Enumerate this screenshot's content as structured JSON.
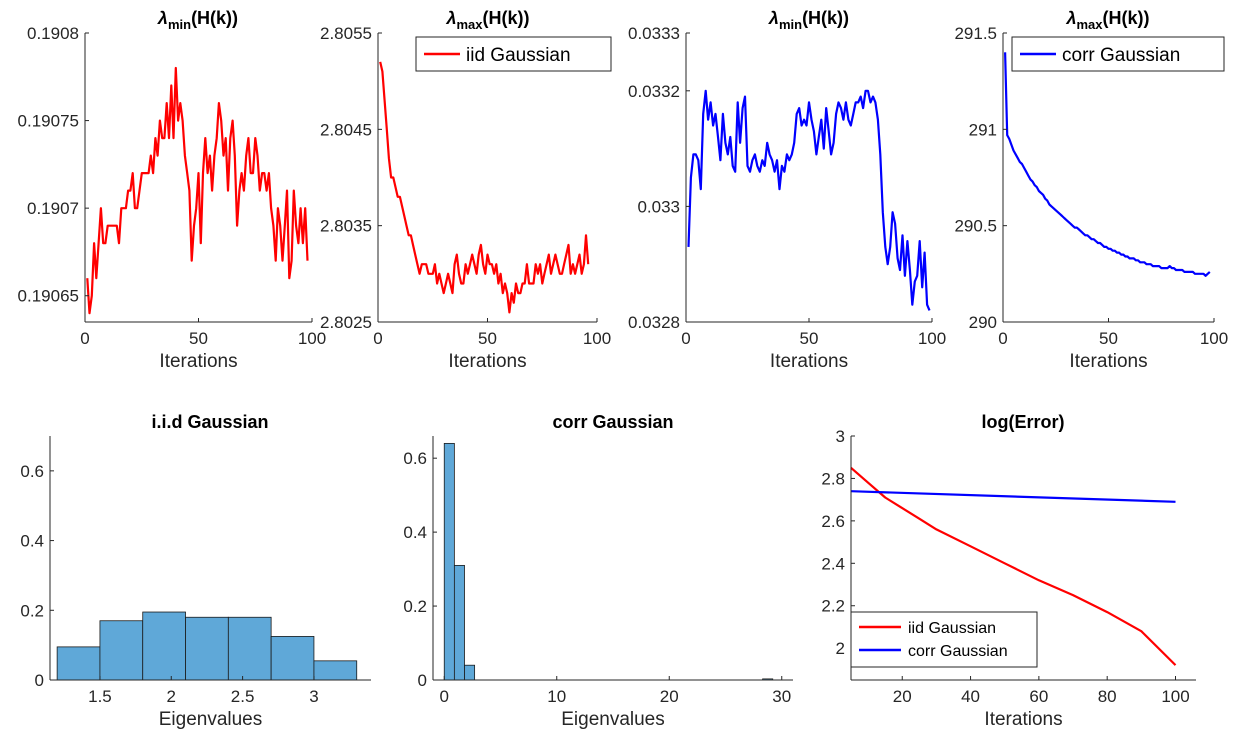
{
  "colors": {
    "red": "#ff0000",
    "blue": "#0000ff",
    "hist": "#5fa8d8",
    "axis": "#262626"
  },
  "chart_data": [
    {
      "id": "p1",
      "type": "line",
      "title": "λmin(H(k))",
      "title_main": "λ",
      "title_sub": "min",
      "title_rest": "(H(k))",
      "xlabel": "Iterations",
      "ylabel": "",
      "xlim": [
        0,
        100
      ],
      "ylim": [
        0.190635,
        0.1908
      ],
      "xticks": [
        0,
        50,
        100
      ],
      "xtick_labels": [
        "0",
        "50",
        "100"
      ],
      "yticks": [
        0.19065,
        0.1907,
        0.19075,
        0.1908
      ],
      "ytick_labels": [
        "0.19065",
        "0.1907",
        "0.19075",
        "0.1908"
      ],
      "series": [
        {
          "color": "#ff0000",
          "y": [
            0.19066,
            0.19064,
            0.19065,
            0.19068,
            0.19066,
            0.19068,
            0.1907,
            0.19068,
            0.19068,
            0.19069,
            0.19069,
            0.19069,
            0.19069,
            0.19069,
            0.19068,
            0.1907,
            0.1907,
            0.1907,
            0.19071,
            0.19071,
            0.19072,
            0.1907,
            0.1907,
            0.19071,
            0.19072,
            0.19072,
            0.19072,
            0.19072,
            0.19073,
            0.19072,
            0.19074,
            0.19073,
            0.19075,
            0.19074,
            0.19074,
            0.19076,
            0.19074,
            0.19077,
            0.19074,
            0.19078,
            0.19075,
            0.19076,
            0.19075,
            0.19073,
            0.19072,
            0.19071,
            0.19067,
            0.19069,
            0.1907,
            0.19072,
            0.19068,
            0.19072,
            0.19074,
            0.19072,
            0.19073,
            0.19071,
            0.19073,
            0.19074,
            0.19076,
            0.19075,
            0.19073,
            0.19074,
            0.19071,
            0.19074,
            0.19075,
            0.19073,
            0.19069,
            0.19071,
            0.19072,
            0.19071,
            0.19073,
            0.19074,
            0.19072,
            0.19072,
            0.19074,
            0.19073,
            0.19071,
            0.19072,
            0.19072,
            0.19071,
            0.19072,
            0.1907,
            0.19069,
            0.19067,
            0.1907,
            0.19069,
            0.19067,
            0.19069,
            0.19071,
            0.19066,
            0.19067,
            0.19071,
            0.19069,
            0.19068,
            0.1907,
            0.19068,
            0.1907,
            0.19067
          ]
        }
      ]
    },
    {
      "id": "p2",
      "type": "line",
      "title": "λmax(H(k))",
      "title_main": "λ",
      "title_sub": "max",
      "title_rest": "(H(k))",
      "xlabel": "Iterations",
      "ylabel": "",
      "xlim": [
        0,
        100
      ],
      "ylim": [
        2.8025,
        2.8055
      ],
      "xticks": [
        0,
        50,
        100
      ],
      "xtick_labels": [
        "0",
        "50",
        "100"
      ],
      "yticks": [
        2.8025,
        2.8035,
        2.8045,
        2.8055
      ],
      "ytick_labels": [
        "2.8025",
        "2.8035",
        "2.8045",
        "2.8055"
      ],
      "legend": [
        "iid Gaussian"
      ],
      "legend_position": "top-right",
      "series": [
        {
          "name": "iid Gaussian",
          "color": "#ff0000",
          "y": [
            2.8052,
            2.8051,
            2.8048,
            2.8045,
            2.8042,
            2.804,
            2.804,
            2.8039,
            2.8038,
            2.8038,
            2.8037,
            2.8036,
            2.8035,
            2.8034,
            2.8034,
            2.8033,
            2.8032,
            2.8031,
            2.803,
            2.8031,
            2.8031,
            2.8031,
            2.803,
            2.803,
            2.803,
            2.8031,
            2.8029,
            2.803,
            2.8029,
            2.8028,
            2.8029,
            2.803,
            2.8029,
            2.8028,
            2.8031,
            2.8032,
            2.803,
            2.8029,
            2.8029,
            2.8031,
            2.803,
            2.8031,
            2.8032,
            2.8031,
            2.803,
            2.8032,
            2.8033,
            2.8031,
            2.803,
            2.8032,
            2.8031,
            2.8031,
            2.803,
            2.8031,
            2.8029,
            2.803,
            2.8028,
            2.8029,
            2.8028,
            2.8026,
            2.8028,
            2.8027,
            2.8029,
            2.8028,
            2.8028,
            2.8029,
            2.8029,
            2.8031,
            2.8029,
            2.8029,
            2.8029,
            2.8031,
            2.803,
            2.8031,
            2.8029,
            2.803,
            2.8031,
            2.8032,
            2.803,
            2.8031,
            2.8032,
            2.8031,
            2.803,
            2.803,
            2.8031,
            2.8032,
            2.8033,
            2.803,
            2.8031,
            2.803,
            2.8031,
            2.8032,
            2.803,
            2.8031,
            2.8034,
            2.8031
          ]
        }
      ]
    },
    {
      "id": "p3",
      "type": "line",
      "title": "λmin(H(k))",
      "title_main": "λ",
      "title_sub": "min",
      "title_rest": "(H(k))",
      "xlabel": "Iterations",
      "ylabel": "",
      "xlim": [
        0,
        100
      ],
      "ylim": [
        0.0328,
        0.0333
      ],
      "xticks": [
        0,
        50,
        100
      ],
      "xtick_labels": [
        "0",
        "50",
        "100"
      ],
      "yticks": [
        0.0328,
        0.033,
        0.0332,
        0.0333
      ],
      "ytick_labels": [
        "0.0328",
        "0.033",
        "0.0332",
        "0.0333"
      ],
      "series": [
        {
          "color": "#0000ff",
          "y": [
            0.03293,
            0.03305,
            0.03309,
            0.03309,
            0.03308,
            0.03303,
            0.03316,
            0.0332,
            0.03315,
            0.03318,
            0.03314,
            0.03316,
            0.03312,
            0.03308,
            0.03316,
            0.03311,
            0.03309,
            0.03312,
            0.03307,
            0.03306,
            0.03318,
            0.03311,
            0.03317,
            0.03319,
            0.03307,
            0.03306,
            0.03308,
            0.03309,
            0.03307,
            0.03306,
            0.03308,
            0.03307,
            0.03311,
            0.03309,
            0.03308,
            0.03306,
            0.03308,
            0.03303,
            0.03307,
            0.03306,
            0.03309,
            0.03308,
            0.03309,
            0.03311,
            0.03316,
            0.03317,
            0.03314,
            0.03315,
            0.03314,
            0.03318,
            0.03315,
            0.03313,
            0.03309,
            0.03312,
            0.03315,
            0.0331,
            0.03317,
            0.03313,
            0.03309,
            0.03311,
            0.03316,
            0.03318,
            0.03317,
            0.03315,
            0.03318,
            0.03315,
            0.03314,
            0.03316,
            0.03318,
            0.03318,
            0.03319,
            0.03317,
            0.0332,
            0.0332,
            0.03318,
            0.03319,
            0.03318,
            0.03315,
            0.03309,
            0.03299,
            0.03293,
            0.0329,
            0.03293,
            0.03299,
            0.03297,
            0.03291,
            0.03289,
            0.03295,
            0.03288,
            0.03294,
            0.03289,
            0.03283,
            0.03287,
            0.03288,
            0.03294,
            0.03286,
            0.03292,
            0.03283,
            0.03282
          ]
        }
      ]
    },
    {
      "id": "p4",
      "type": "line",
      "title": "λmax(H(k))",
      "title_main": "λ",
      "title_sub": "max",
      "title_rest": "(H(k))",
      "xlabel": "Iterations",
      "ylabel": "",
      "xlim": [
        0,
        100
      ],
      "ylim": [
        290,
        291.5
      ],
      "xticks": [
        0,
        50,
        100
      ],
      "xtick_labels": [
        "0",
        "50",
        "100"
      ],
      "yticks": [
        290,
        290.5,
        291,
        291.5
      ],
      "ytick_labels": [
        "290",
        "290.5",
        "291",
        "291.5"
      ],
      "legend": [
        "corr Gaussian"
      ],
      "legend_position": "top-right",
      "series": [
        {
          "name": "corr Gaussian",
          "color": "#0000ff",
          "y": [
            291.4,
            290.97,
            290.95,
            290.92,
            290.89,
            290.87,
            290.85,
            290.83,
            290.82,
            290.8,
            290.78,
            290.76,
            290.74,
            290.73,
            290.71,
            290.7,
            290.68,
            290.67,
            290.66,
            290.64,
            290.63,
            290.61,
            290.6,
            290.59,
            290.58,
            290.57,
            290.56,
            290.55,
            290.54,
            290.53,
            290.52,
            290.51,
            290.5,
            290.49,
            290.49,
            290.48,
            290.47,
            290.46,
            290.45,
            290.45,
            290.44,
            290.43,
            290.43,
            290.42,
            290.41,
            290.41,
            290.4,
            290.39,
            290.39,
            290.38,
            290.38,
            290.37,
            290.37,
            290.36,
            290.36,
            290.35,
            290.35,
            290.34,
            290.34,
            290.33,
            290.33,
            290.33,
            290.32,
            290.32,
            290.31,
            290.31,
            290.31,
            290.3,
            290.3,
            290.3,
            290.29,
            290.29,
            290.29,
            290.29,
            290.28,
            290.28,
            290.28,
            290.28,
            290.29,
            290.28,
            290.28,
            290.27,
            290.27,
            290.27,
            290.27,
            290.26,
            290.26,
            290.26,
            290.26,
            290.26,
            290.25,
            290.25,
            290.25,
            290.25,
            290.25,
            290.24,
            290.25,
            290.26
          ]
        }
      ]
    },
    {
      "id": "p5",
      "type": "bar",
      "title": "i.i.d Gaussian",
      "xlabel": "Eigenvalues",
      "ylabel": "",
      "xlim": [
        1.15,
        3.4
      ],
      "ylim": [
        0,
        0.7
      ],
      "xticks": [
        1.5,
        2,
        2.5,
        3
      ],
      "xtick_labels": [
        "1.5",
        "2",
        "2.5",
        "3"
      ],
      "yticks": [
        0,
        0.2,
        0.4,
        0.6
      ],
      "ytick_labels": [
        "0",
        "0.2",
        "0.4",
        "0.6"
      ],
      "bin_edges": [
        1.2,
        1.5,
        1.8,
        2.1,
        2.4,
        2.7,
        3.0,
        3.3
      ],
      "values": [
        0.095,
        0.17,
        0.195,
        0.18,
        0.18,
        0.125,
        0.055
      ]
    },
    {
      "id": "p6",
      "type": "bar",
      "title": "corr Gaussian",
      "xlabel": "Eigenvalues",
      "ylabel": "",
      "xlim": [
        -1,
        31
      ],
      "ylim": [
        0,
        0.66
      ],
      "xticks": [
        0,
        10,
        20,
        30
      ],
      "xtick_labels": [
        "0",
        "10",
        "20",
        "30"
      ],
      "yticks": [
        0,
        0.2,
        0.4,
        0.6
      ],
      "ytick_labels": [
        "0",
        "0.2",
        "0.4",
        "0.6"
      ],
      "bin_edges": [
        0,
        0.9,
        1.8,
        2.7,
        3.6,
        28.3,
        29.2
      ],
      "values": [
        0.64,
        0.31,
        0.04,
        0,
        0,
        0.003
      ]
    },
    {
      "id": "p7",
      "type": "line",
      "title": "log(Error)",
      "xlabel": "Iterations",
      "ylabel": "",
      "xlim": [
        5,
        106
      ],
      "ylim": [
        1.85,
        3
      ],
      "xticks": [
        20,
        40,
        60,
        80,
        100
      ],
      "xtick_labels": [
        "20",
        "40",
        "60",
        "80",
        "100"
      ],
      "yticks": [
        2,
        2.2,
        2.4,
        2.6,
        2.8,
        3
      ],
      "ytick_labels": [
        "2",
        "2.2",
        "2.4",
        "2.6",
        "2.8",
        "3"
      ],
      "legend": [
        "iid Gaussian",
        "corr Gaussian"
      ],
      "legend_position": "bottom-left",
      "series": [
        {
          "name": "iid Gaussian",
          "color": "#ff0000",
          "x": [
            5,
            10,
            15,
            20,
            25,
            30,
            40,
            50,
            60,
            70,
            80,
            90,
            100
          ],
          "y": [
            2.85,
            2.78,
            2.71,
            2.66,
            2.61,
            2.56,
            2.48,
            2.4,
            2.32,
            2.25,
            2.17,
            2.08,
            1.92
          ]
        },
        {
          "name": "corr Gaussian",
          "color": "#0000ff",
          "x": [
            5,
            100
          ],
          "y": [
            2.74,
            2.69
          ]
        }
      ]
    }
  ]
}
